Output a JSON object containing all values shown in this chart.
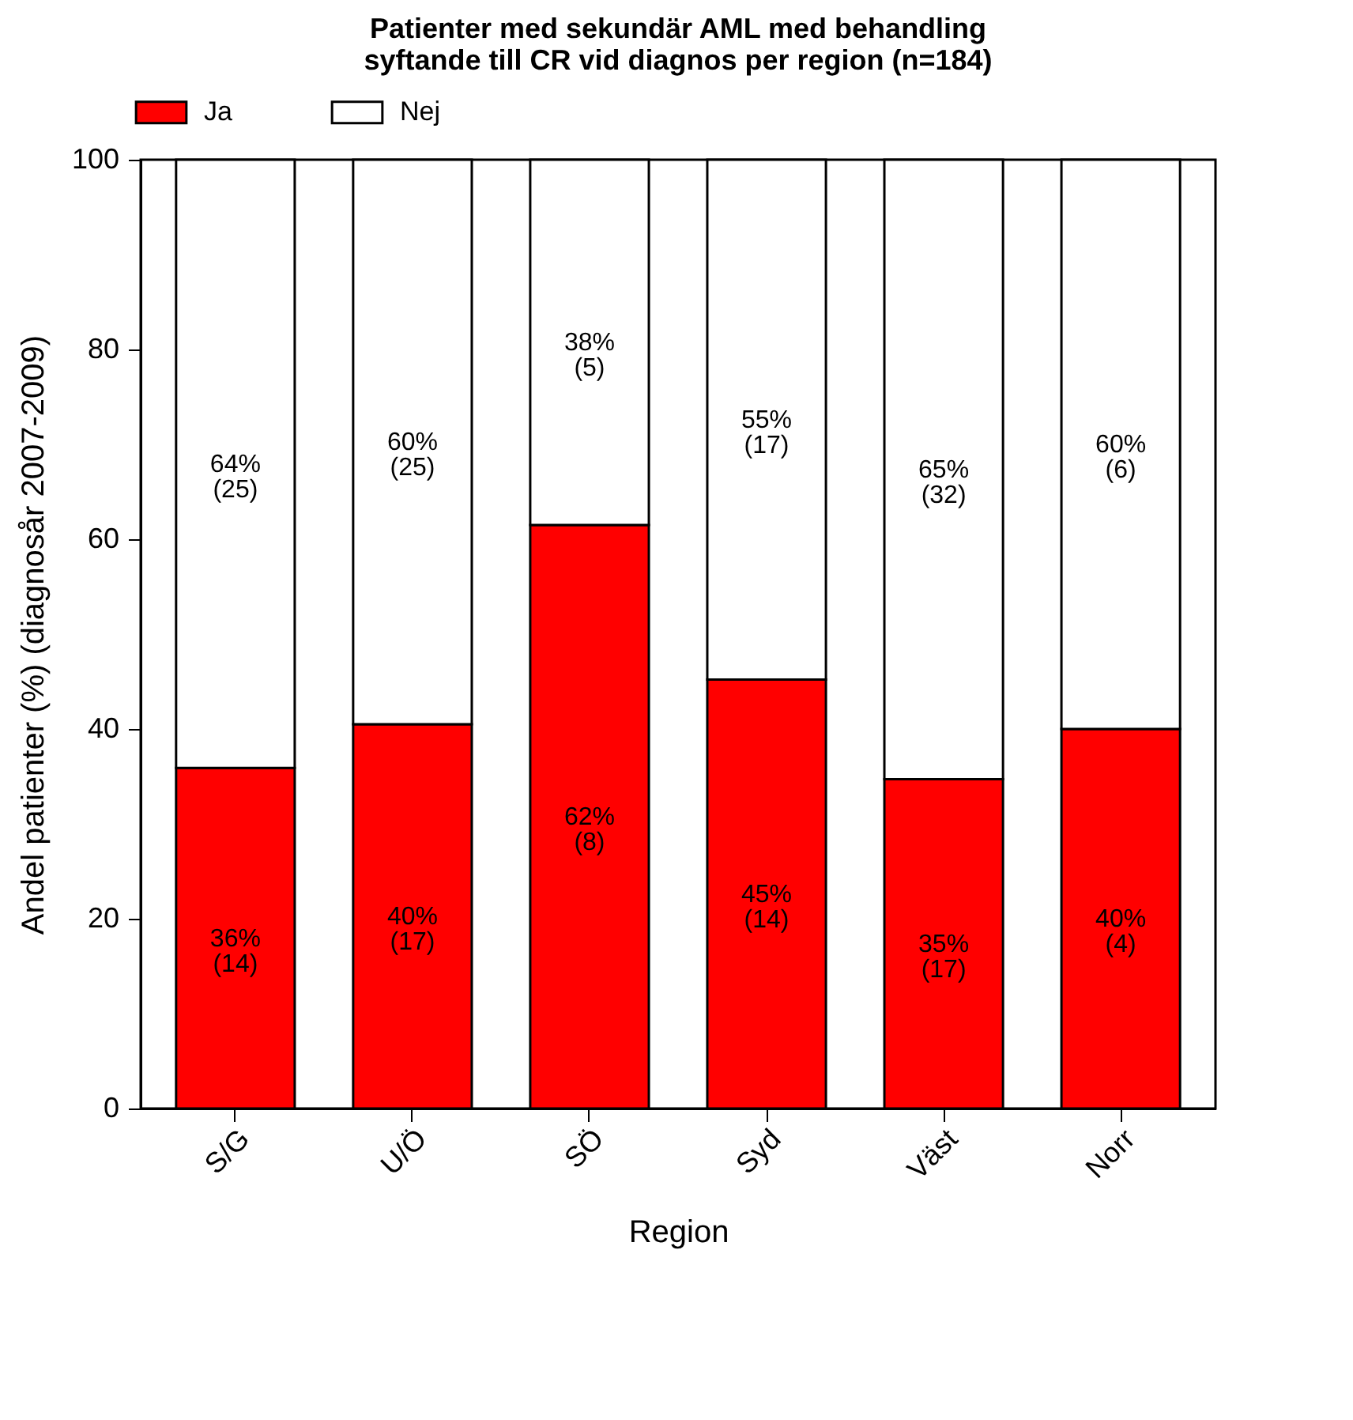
{
  "chart_data": {
    "type": "bar",
    "stacked": true,
    "title": "Patienter med sekundär AML med behandling\nsyftande till CR vid diagnos per region (n=184)",
    "xlabel": "Region",
    "ylabel": "Andel patienter (%) (diagnosår 2007-2009)",
    "categories": [
      "S/G",
      "U/Ö",
      "SÖ",
      "Syd",
      "Väst",
      "Norr"
    ],
    "series": [
      {
        "name": "Ja",
        "color": "#ff0000",
        "values": [
          35.9,
          40.5,
          61.5,
          45.2,
          34.7,
          40.0
        ],
        "value_labels": [
          "36%\n(14)",
          "40%\n(17)",
          "62%\n(8)",
          "45%\n(14)",
          "35%\n(17)",
          "40%\n(4)"
        ]
      },
      {
        "name": "Nej",
        "color": "#ffffff",
        "values": [
          64.1,
          59.5,
          38.5,
          54.8,
          65.3,
          60.0
        ],
        "value_labels": [
          "64%\n(25)",
          "60%\n(25)",
          "38%\n(5)",
          "55%\n(17)",
          "65%\n(32)",
          "60%\n(6)"
        ]
      }
    ],
    "ylim": [
      0,
      100
    ],
    "yticks": [
      0,
      20,
      40,
      60,
      80,
      100
    ],
    "grid": false,
    "legend": "top"
  }
}
